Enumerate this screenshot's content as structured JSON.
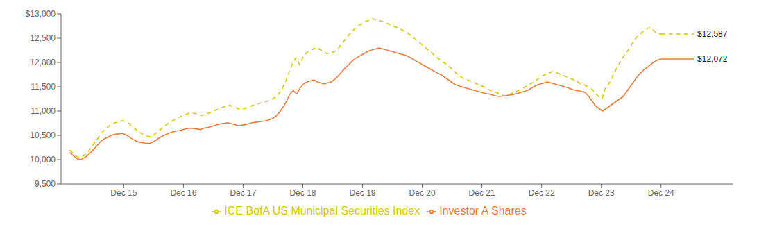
{
  "chart_data": {
    "type": "line",
    "xlim": [
      -0.05,
      11.2
    ],
    "xticks": [
      {
        "value": 1,
        "label": "Dec 15"
      },
      {
        "value": 2,
        "label": "Dec 16"
      },
      {
        "value": 3,
        "label": "Dec 17"
      },
      {
        "value": 4,
        "label": "Dec 18"
      },
      {
        "value": 5,
        "label": "Dec 19"
      },
      {
        "value": 6,
        "label": "Dec 20"
      },
      {
        "value": 7,
        "label": "Dec 21"
      },
      {
        "value": 8,
        "label": "Dec 22"
      },
      {
        "value": 9,
        "label": "Dec 23"
      },
      {
        "value": 10,
        "label": "Dec 24"
      }
    ],
    "ylim": [
      9500,
      13000
    ],
    "yticks": [
      {
        "value": 9500,
        "label": "9,500"
      },
      {
        "value": 10000,
        "label": "10,000"
      },
      {
        "value": 10500,
        "label": "10,500"
      },
      {
        "value": 11000,
        "label": "11,000"
      },
      {
        "value": 11500,
        "label": "11,500"
      },
      {
        "value": 12000,
        "label": "12,000"
      },
      {
        "value": 12500,
        "label": "12,500"
      },
      {
        "value": 13000,
        "label": "$13,000"
      }
    ],
    "grid": false,
    "legend": "bottom",
    "series": [
      {
        "name": "Investor A Shares",
        "color": "#E87E3E",
        "line_style": "solid",
        "values": [
          10150,
          10080,
          10020,
          10000,
          10030,
          10080,
          10150,
          10220,
          10300,
          10380,
          10430,
          10460,
          10500,
          10520,
          10530,
          10540,
          10520,
          10480,
          10430,
          10390,
          10360,
          10350,
          10340,
          10330,
          10360,
          10400,
          10450,
          10490,
          10520,
          10550,
          10570,
          10590,
          10600,
          10620,
          10640,
          10650,
          10640,
          10630,
          10620,
          10650,
          10660,
          10680,
          10700,
          10720,
          10740,
          10750,
          10760,
          10740,
          10720,
          10700,
          10710,
          10720,
          10740,
          10760,
          10770,
          10780,
          10790,
          10800,
          10820,
          10850,
          10900,
          10980,
          11080,
          11200,
          11350,
          11420,
          11350,
          11480,
          11560,
          11600,
          11620,
          11640,
          11600,
          11580,
          11560,
          11580,
          11600,
          11650,
          11720,
          11800,
          11880,
          11950,
          12020,
          12080,
          12120,
          12160,
          12200,
          12240,
          12260,
          12280,
          12300,
          12280,
          12260,
          12240,
          12220,
          12200,
          12180,
          12160,
          12140,
          12100,
          12060,
          12020,
          11980,
          11940,
          11900,
          11860,
          11820,
          11780,
          11750,
          11700,
          11650,
          11600,
          11550,
          11520,
          11500,
          11480,
          11460,
          11440,
          11420,
          11400,
          11380,
          11360,
          11350,
          11330,
          11310,
          11300,
          11310,
          11320,
          11330,
          11340,
          11360,
          11380,
          11400,
          11420,
          11460,
          11500,
          11540,
          11560,
          11580,
          11600,
          11580,
          11560,
          11540,
          11520,
          11500,
          11480,
          11450,
          11430,
          11420,
          11400,
          11380,
          11300,
          11200,
          11100,
          11050,
          11000,
          11050,
          11100,
          11150,
          11200,
          11250,
          11300,
          11400,
          11500,
          11600,
          11700,
          11780,
          11850,
          11900,
          11960,
          12010,
          12050,
          12072
        ]
      },
      {
        "name": "ICE BofA US Municipal Securities Index",
        "color": "#D4C800",
        "line_style": "dashed",
        "values": [
          10200,
          10120,
          10060,
          10050,
          10080,
          10150,
          10240,
          10340,
          10440,
          10540,
          10620,
          10680,
          10720,
          10760,
          10780,
          10800,
          10780,
          10740,
          10680,
          10620,
          10560,
          10520,
          10490,
          10470,
          10500,
          10560,
          10620,
          10680,
          10730,
          10780,
          10820,
          10860,
          10890,
          10920,
          10950,
          10970,
          10950,
          10930,
          10910,
          10940,
          10960,
          10990,
          11020,
          11050,
          11080,
          11100,
          11120,
          11090,
          11060,
          11030,
          11050,
          11070,
          11100,
          11130,
          11150,
          11170,
          11190,
          11210,
          11240,
          11280,
          11350,
          11460,
          11600,
          11800,
          11980,
          12100,
          11960,
          12100,
          12200,
          12250,
          12280,
          12310,
          12260,
          12220,
          12180,
          12200,
          12220,
          12280,
          12370,
          12460,
          12550,
          12630,
          12700,
          12760,
          12800,
          12840,
          12870,
          12900,
          12880,
          12860,
          12840,
          12810,
          12780,
          12750,
          12720,
          12690,
          12650,
          12610,
          12560,
          12500,
          12440,
          12380,
          12320,
          12260,
          12200,
          12140,
          12080,
          12020,
          11980,
          11920,
          11860,
          11790,
          11720,
          11680,
          11650,
          11620,
          11590,
          11560,
          11530,
          11500,
          11460,
          11420,
          11400,
          11370,
          11340,
          11310,
          11330,
          11360,
          11390,
          11420,
          11460,
          11500,
          11540,
          11580,
          11630,
          11680,
          11730,
          11760,
          11790,
          11820,
          11790,
          11760,
          11730,
          11700,
          11670,
          11640,
          11600,
          11560,
          11540,
          11500,
          11460,
          11380,
          11300,
          11250,
          11480,
          11560,
          11700,
          11850,
          11980,
          12100,
          12200,
          12300,
          12420,
          12520,
          12580,
          12650,
          12700,
          12720,
          12650,
          12590,
          12587
        ]
      }
    ],
    "annotations": [
      {
        "series": "ICE BofA US Municipal Securities Index",
        "text": "$12,587",
        "value": 12587
      },
      {
        "series": "Investor A Shares",
        "text": "$12,072",
        "value": 12072
      }
    ]
  }
}
